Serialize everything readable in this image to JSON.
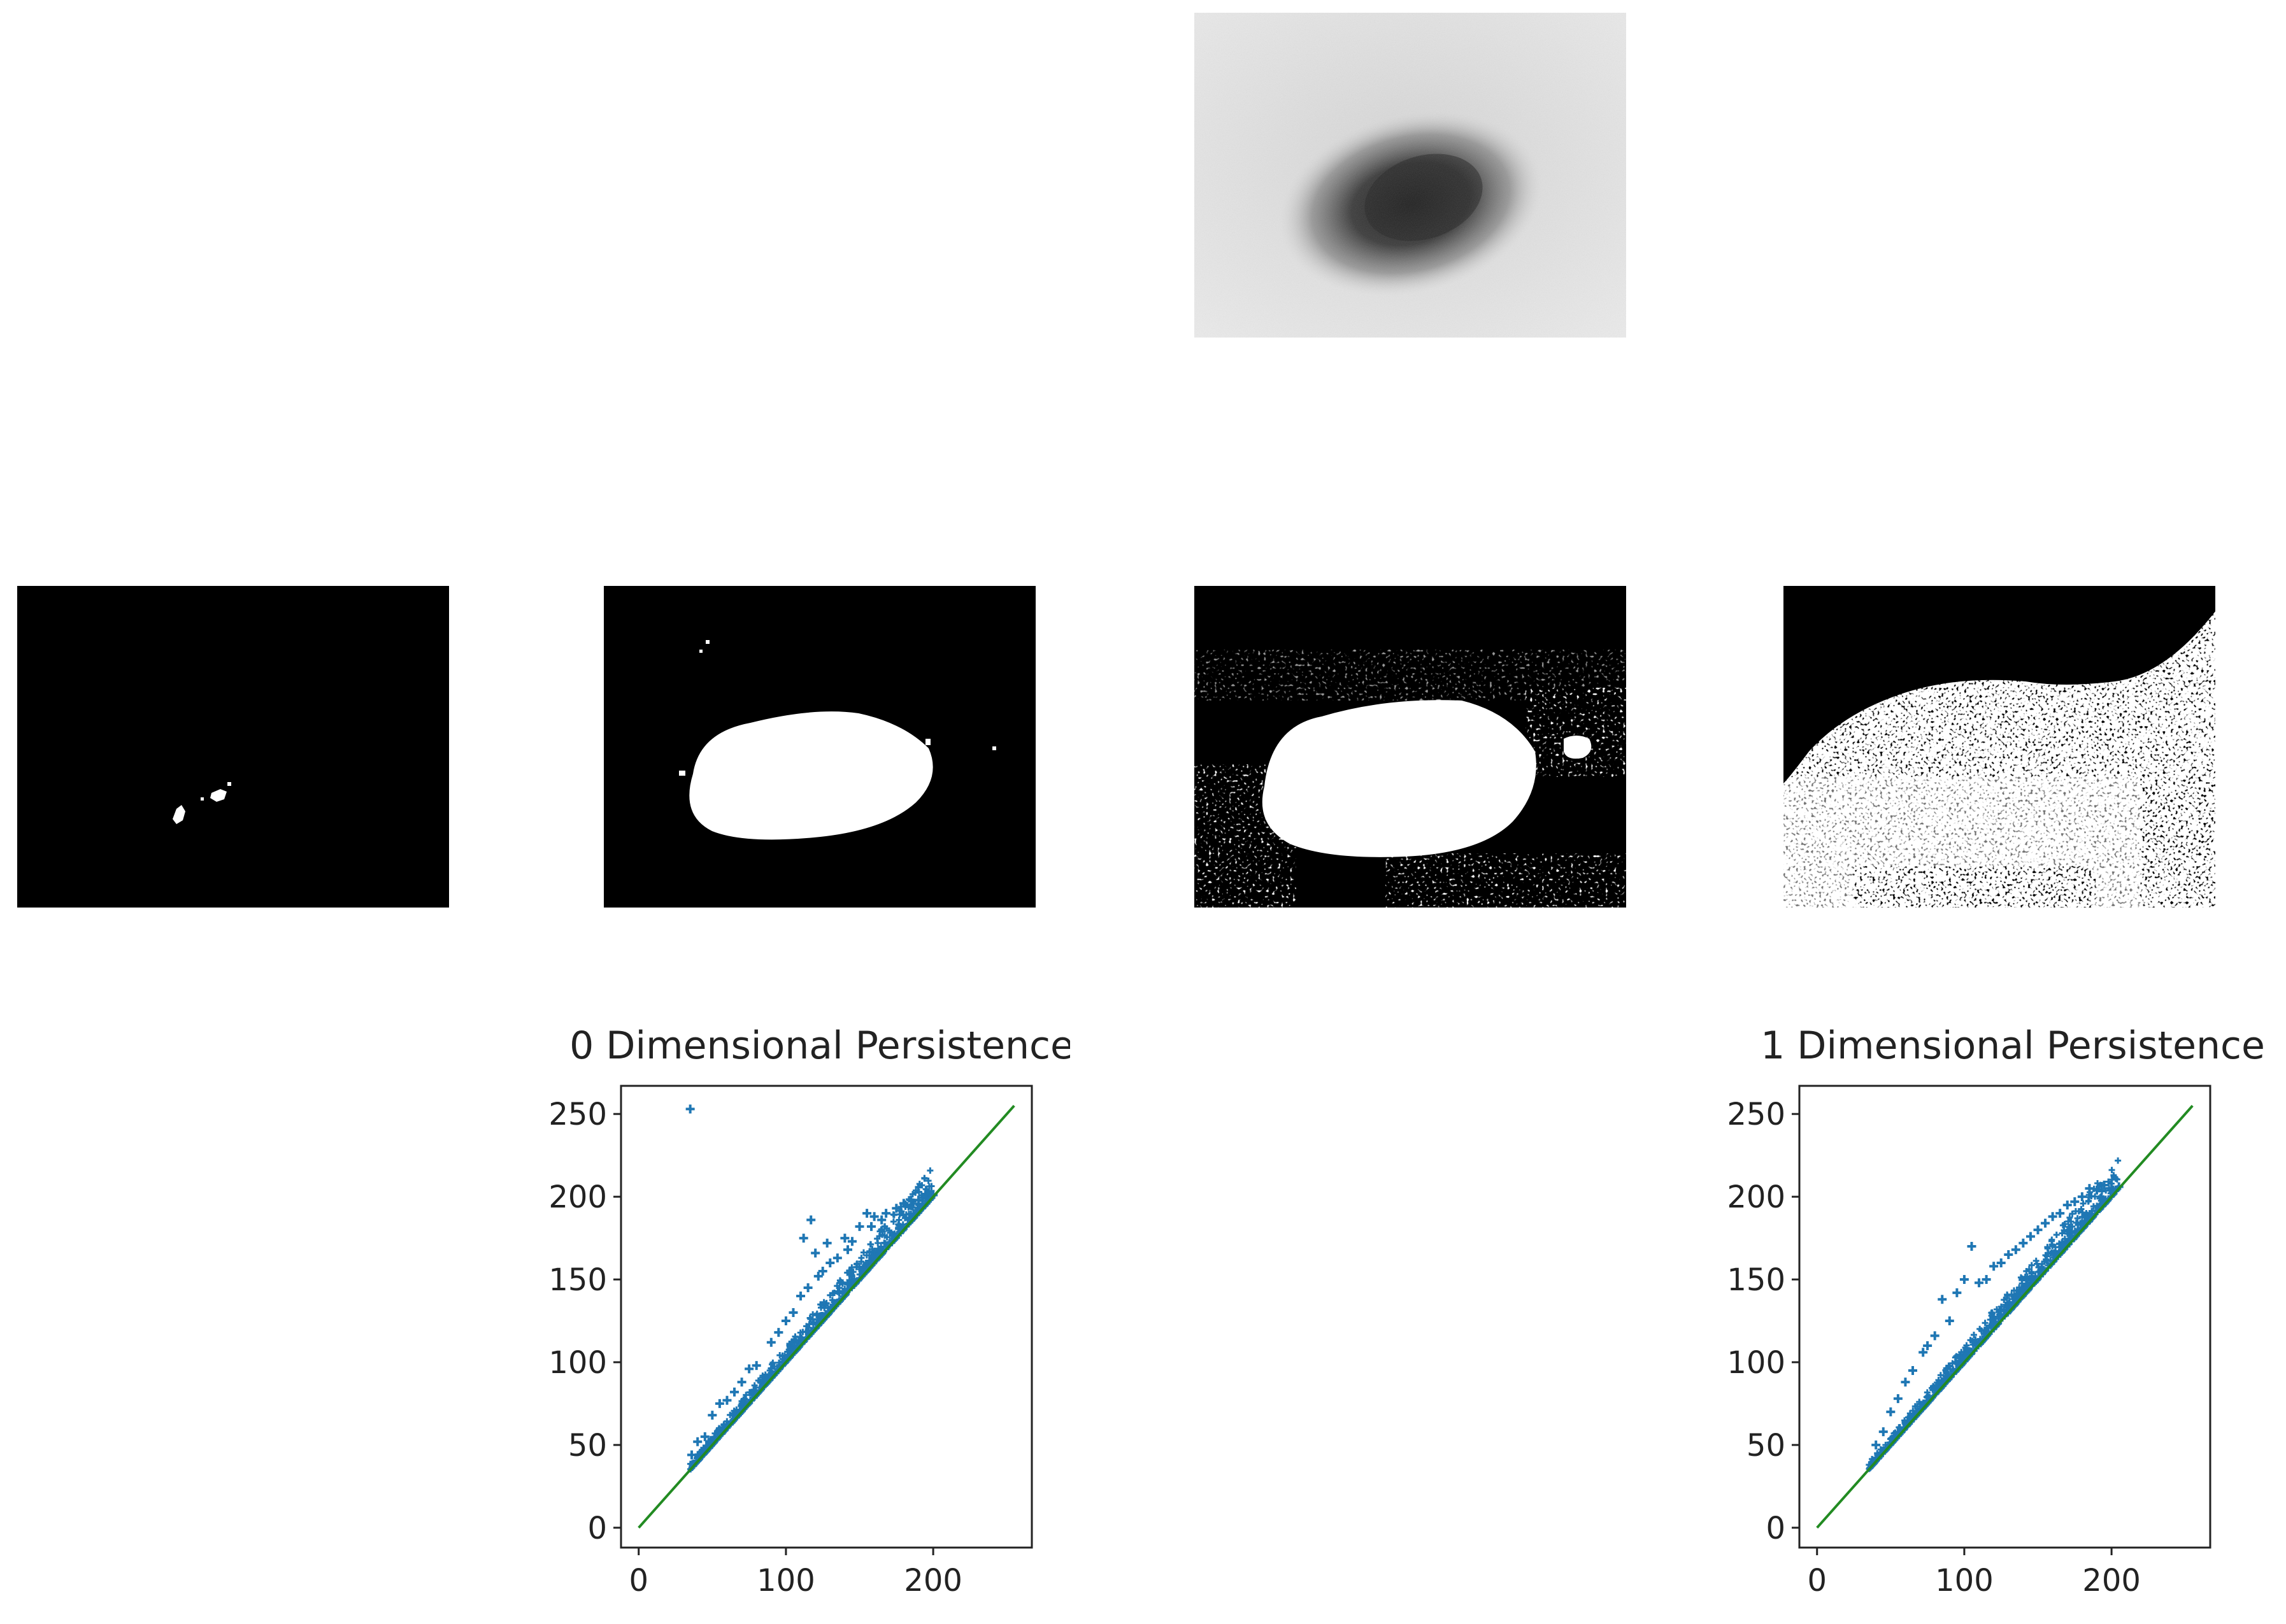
{
  "images": {
    "original": {
      "kind": "grayscale-photo"
    },
    "thresholds": [
      {
        "kind": "binary-mask",
        "level": "lowest"
      },
      {
        "kind": "binary-mask",
        "level": "low"
      },
      {
        "kind": "binary-mask",
        "level": "high"
      },
      {
        "kind": "binary-mask",
        "level": "highest"
      }
    ]
  },
  "colors": {
    "points": "#1f77b4",
    "diagonal": "#228B22",
    "axis": "#222222"
  },
  "chart_data": [
    {
      "type": "scatter",
      "title": "0 Dimensional Persistence",
      "xlabel": "",
      "ylabel": "",
      "xlim": [
        -12,
        267
      ],
      "ylim": [
        -12,
        267
      ],
      "xticks": [
        "0",
        "100",
        "200"
      ],
      "yticks": [
        "0",
        "50",
        "100",
        "150",
        "200",
        "250"
      ],
      "diagonal": [
        [
          0,
          0
        ],
        [
          255,
          255
        ]
      ],
      "points": [
        [
          35,
          253
        ],
        [
          117,
          186
        ],
        [
          112,
          175
        ],
        [
          120,
          166
        ],
        [
          128,
          172
        ],
        [
          140,
          175
        ],
        [
          150,
          182
        ],
        [
          155,
          190
        ],
        [
          168,
          190
        ],
        [
          185,
          198
        ],
        [
          80,
          98
        ],
        [
          70,
          88
        ],
        [
          60,
          77
        ],
        [
          50,
          68
        ],
        [
          45,
          55
        ],
        [
          55,
          75
        ],
        [
          90,
          112
        ],
        [
          100,
          125
        ],
        [
          110,
          140
        ],
        [
          122,
          152
        ],
        [
          130,
          160
        ],
        [
          142,
          168
        ],
        [
          160,
          188
        ],
        [
          175,
          193
        ],
        [
          195,
          199
        ],
        [
          40,
          52
        ],
        [
          36,
          44
        ],
        [
          65,
          82
        ],
        [
          75,
          96
        ],
        [
          95,
          118
        ],
        [
          105,
          130
        ],
        [
          115,
          145
        ],
        [
          125,
          155
        ],
        [
          135,
          163
        ],
        [
          145,
          173
        ],
        [
          158,
          182
        ],
        [
          165,
          186
        ],
        [
          180,
          196
        ],
        [
          190,
          198
        ],
        [
          200,
          201
        ]
      ],
      "band": {
        "from": 35,
        "to": 200
      }
    },
    {
      "type": "scatter",
      "title": "1 Dimensional Persistence",
      "xlabel": "",
      "ylabel": "",
      "xlim": [
        -12,
        267
      ],
      "ylim": [
        -12,
        267
      ],
      "xticks": [
        "0",
        "100",
        "200"
      ],
      "yticks": [
        "0",
        "50",
        "100",
        "150",
        "200",
        "250"
      ],
      "diagonal": [
        [
          0,
          0
        ],
        [
          255,
          255
        ]
      ],
      "points": [
        [
          105,
          170
        ],
        [
          85,
          138
        ],
        [
          100,
          150
        ],
        [
          95,
          142
        ],
        [
          80,
          116
        ],
        [
          72,
          106
        ],
        [
          60,
          88
        ],
        [
          55,
          78
        ],
        [
          50,
          70
        ],
        [
          90,
          125
        ],
        [
          110,
          148
        ],
        [
          120,
          158
        ],
        [
          130,
          165
        ],
        [
          140,
          172
        ],
        [
          150,
          180
        ],
        [
          160,
          188
        ],
        [
          170,
          195
        ],
        [
          185,
          205
        ],
        [
          195,
          207
        ],
        [
          180,
          200
        ],
        [
          40,
          50
        ],
        [
          45,
          58
        ],
        [
          65,
          95
        ],
        [
          75,
          110
        ],
        [
          115,
          150
        ],
        [
          125,
          160
        ],
        [
          135,
          168
        ],
        [
          145,
          176
        ],
        [
          155,
          184
        ],
        [
          165,
          190
        ],
        [
          175,
          197
        ],
        [
          190,
          204
        ],
        [
          200,
          205
        ],
        [
          205,
          206
        ]
      ],
      "band": {
        "from": 35,
        "to": 205
      }
    }
  ]
}
